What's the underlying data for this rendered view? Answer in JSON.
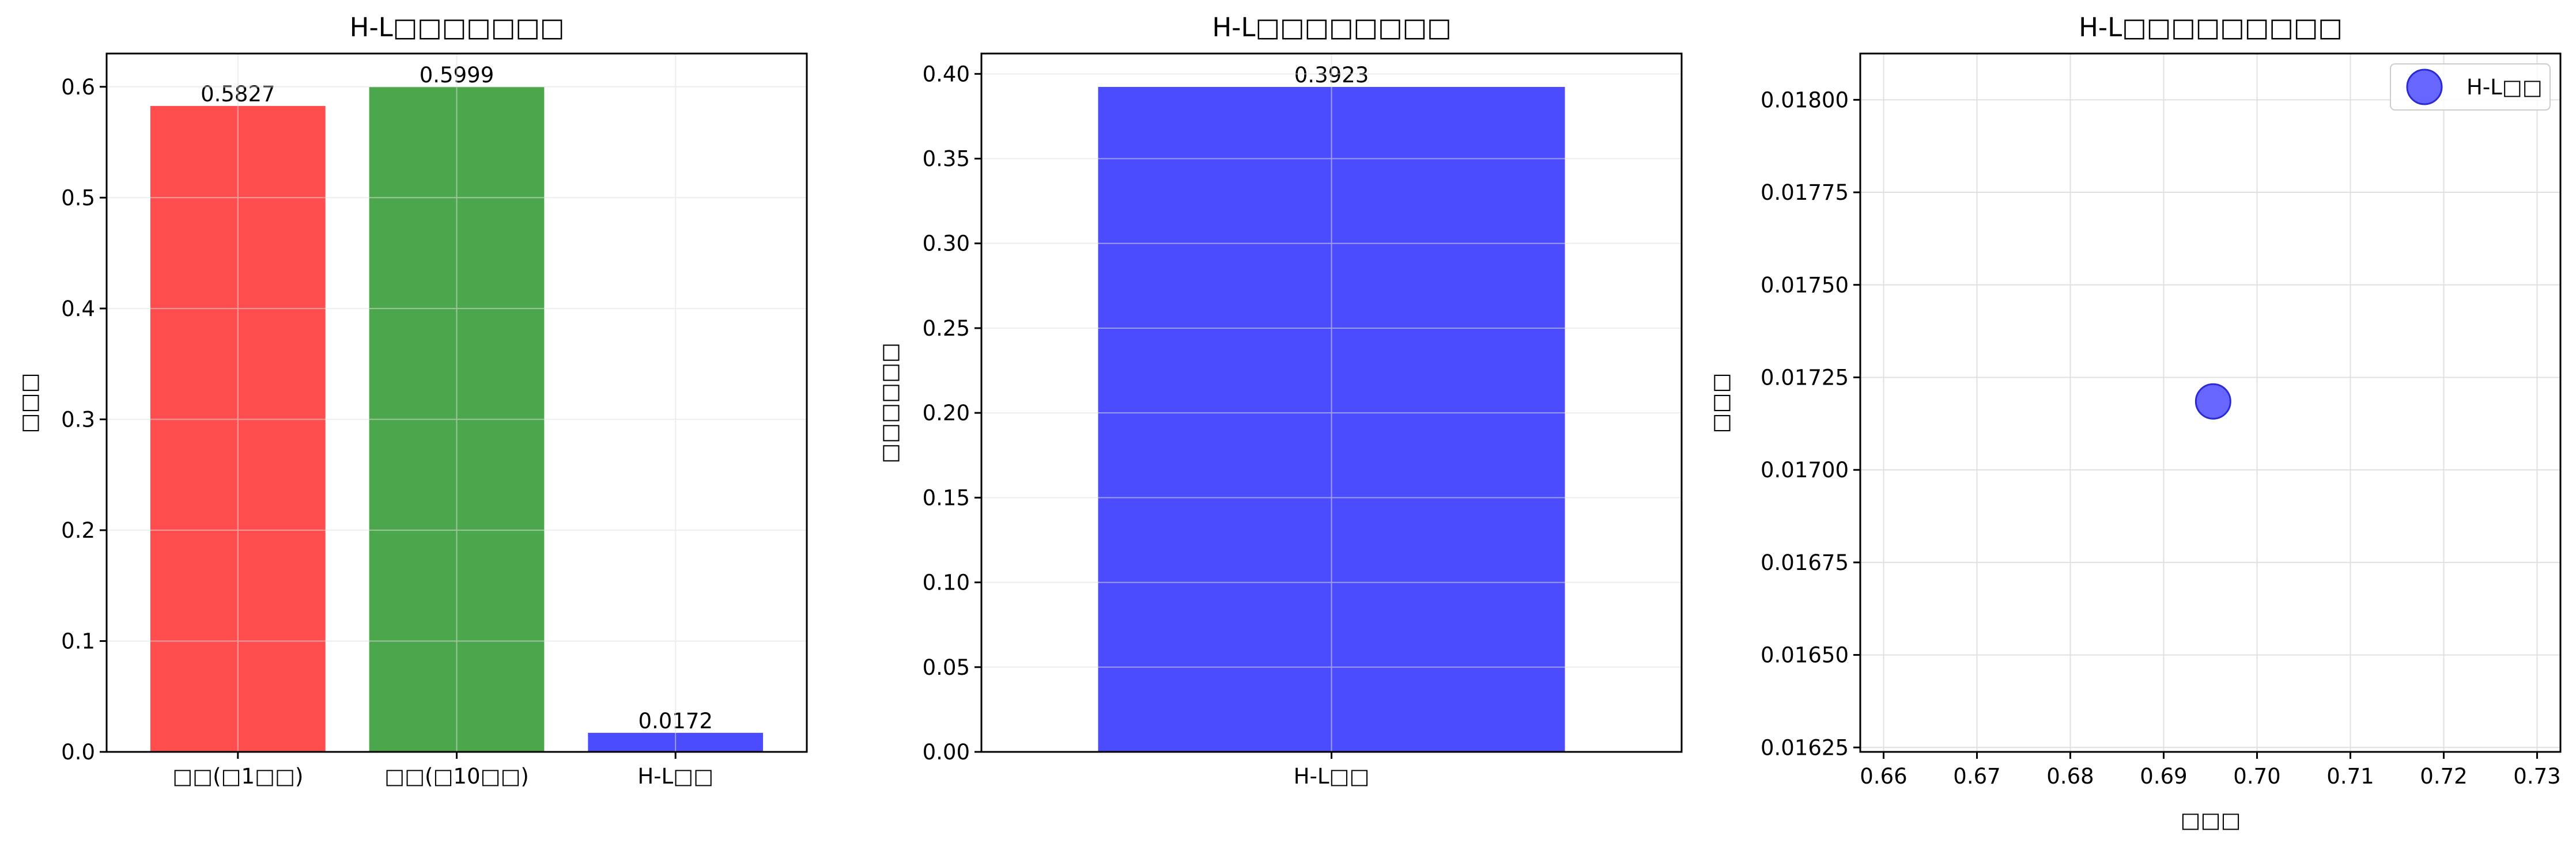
{
  "chart_data": [
    {
      "type": "bar",
      "title": "H-L□□□□□□□",
      "xlabel": "",
      "ylabel": "□□□",
      "categories": [
        "□□(□1□□)",
        "□□(□10□□)",
        "H-L□□"
      ],
      "values": [
        0.5827,
        0.5999,
        0.0172
      ],
      "data_labels": [
        "0.5827",
        "0.5999",
        "0.0172"
      ],
      "colors": [
        "#ff4c4c",
        "#4ca64c",
        "#4c4cff"
      ],
      "ylim": [
        0.0,
        0.63
      ],
      "yticks": [
        0.0,
        0.1,
        0.2,
        0.3,
        0.4,
        0.5,
        0.6
      ],
      "ytick_labels": [
        "0.0",
        "0.1",
        "0.2",
        "0.3",
        "0.4",
        "0.5",
        "0.6"
      ],
      "grid": true
    },
    {
      "type": "bar",
      "title": "H-L□□□□□□□□",
      "xlabel": "",
      "ylabel": "□□□□□□",
      "categories": [
        "H-L□□"
      ],
      "values": [
        0.3923
      ],
      "data_labels": [
        "0.3923"
      ],
      "colors": [
        "#4c4cff"
      ],
      "ylim": [
        0.0,
        0.412
      ],
      "yticks": [
        0.0,
        0.05,
        0.1,
        0.15,
        0.2,
        0.25,
        0.3,
        0.35,
        0.4
      ],
      "ytick_labels": [
        "0.00",
        "0.05",
        "0.10",
        "0.15",
        "0.20",
        "0.25",
        "0.30",
        "0.35",
        "0.40"
      ],
      "grid": true
    },
    {
      "type": "scatter",
      "title": "H-L□□□□□□□□□",
      "xlabel": "□□□",
      "ylabel": "□□□",
      "series": [
        {
          "name": "H-L□□",
          "x": [
            0.6953
          ],
          "y": [
            0.017185
          ],
          "color": "#4c4cff"
        }
      ],
      "xlim": [
        0.6575,
        0.7325
      ],
      "ylim": [
        0.016238,
        0.018125
      ],
      "xticks": [
        0.66,
        0.67,
        0.68,
        0.69,
        0.7,
        0.71,
        0.72,
        0.73
      ],
      "xtick_labels": [
        "0.66",
        "0.67",
        "0.68",
        "0.69",
        "0.70",
        "0.71",
        "0.72",
        "0.73"
      ],
      "yticks": [
        0.01625,
        0.0165,
        0.01675,
        0.017,
        0.01725,
        0.0175,
        0.01775,
        0.018
      ],
      "ytick_labels": [
        "0.01625",
        "0.01650",
        "0.01675",
        "0.01700",
        "0.01725",
        "0.01750",
        "0.01775",
        "0.01800"
      ],
      "legend": "top-right",
      "grid": true
    }
  ]
}
